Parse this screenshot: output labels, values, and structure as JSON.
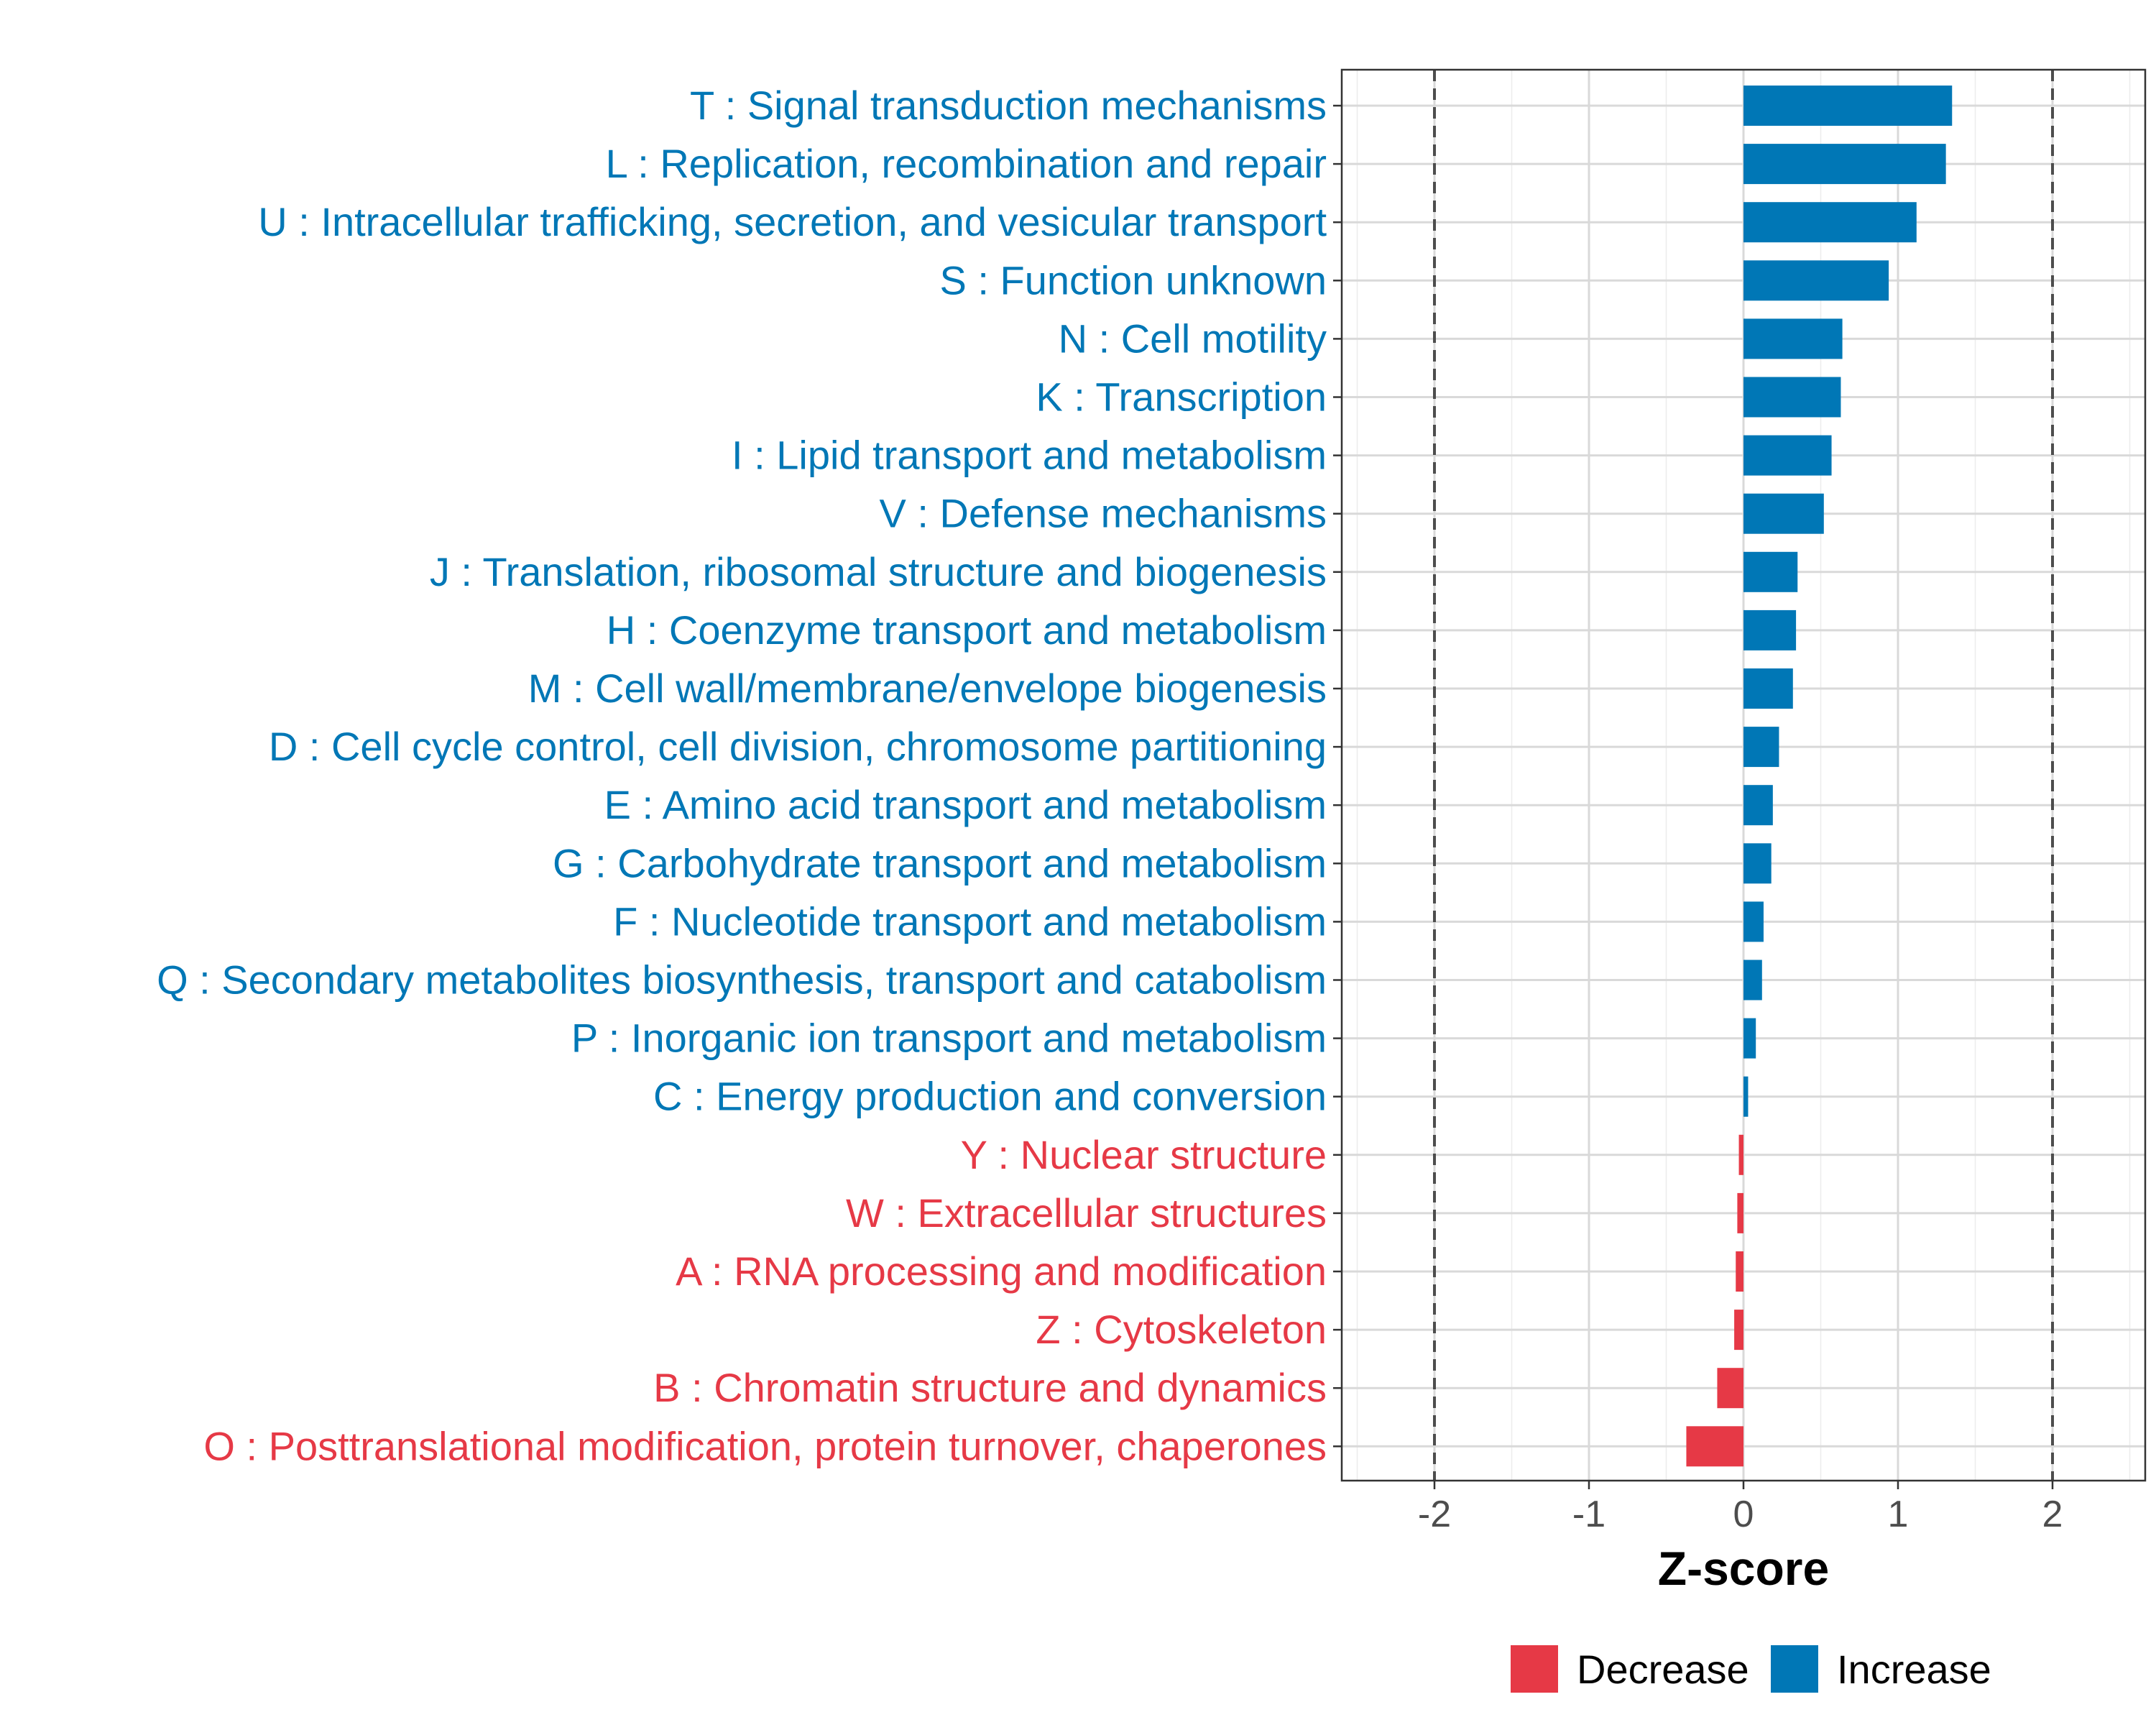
{
  "chart_data": {
    "type": "bar",
    "orientation": "horizontal",
    "title": "",
    "xlabel": "Z-score",
    "ylabel": "",
    "xlim": [
      -2.6,
      2.6
    ],
    "xticks": [
      -2,
      -1,
      0,
      1,
      2
    ],
    "xtick_labels": [
      "-2",
      "-1",
      "0",
      "1",
      "2"
    ],
    "reference_lines": [
      -2,
      2
    ],
    "grid": true,
    "legend_position": "bottom",
    "legend": [
      {
        "name": "Decrease",
        "color": "#E63946"
      },
      {
        "name": "Increase",
        "color": "#0077B6"
      }
    ],
    "categories": [
      "T : Signal transduction mechanisms",
      "L : Replication, recombination and repair",
      "U : Intracellular trafficking, secretion, and vesicular transport",
      "S : Function unknown",
      "N : Cell motility",
      "K : Transcription",
      "I : Lipid transport and metabolism",
      "V : Defense mechanisms",
      "J : Translation, ribosomal structure and biogenesis",
      "H : Coenzyme transport and metabolism",
      "M : Cell wall/membrane/envelope biogenesis",
      "D : Cell cycle control, cell division, chromosome partitioning",
      "E : Amino acid transport and metabolism",
      "G : Carbohydrate transport and metabolism",
      "F : Nucleotide transport and metabolism",
      "Q : Secondary metabolites biosynthesis, transport and catabolism",
      "P : Inorganic ion transport and metabolism",
      "C : Energy production and conversion",
      "Y : Nuclear structure",
      "W : Extracellular structures",
      "A : RNA processing and modification",
      "Z : Cytoskeleton",
      "B : Chromatin structure and dynamics",
      "O : Posttranslational modification, protein turnover, chaperones"
    ],
    "values": [
      1.35,
      1.31,
      1.12,
      0.94,
      0.64,
      0.63,
      0.57,
      0.52,
      0.35,
      0.34,
      0.32,
      0.23,
      0.19,
      0.18,
      0.13,
      0.12,
      0.08,
      0.03,
      -0.03,
      -0.04,
      -0.05,
      -0.06,
      -0.17,
      -0.37
    ],
    "groups": [
      "Increase",
      "Increase",
      "Increase",
      "Increase",
      "Increase",
      "Increase",
      "Increase",
      "Increase",
      "Increase",
      "Increase",
      "Increase",
      "Increase",
      "Increase",
      "Increase",
      "Increase",
      "Increase",
      "Increase",
      "Increase",
      "Decrease",
      "Decrease",
      "Decrease",
      "Decrease",
      "Decrease",
      "Decrease"
    ],
    "colors": {
      "Increase": "#0077B6",
      "Decrease": "#E63946"
    }
  }
}
